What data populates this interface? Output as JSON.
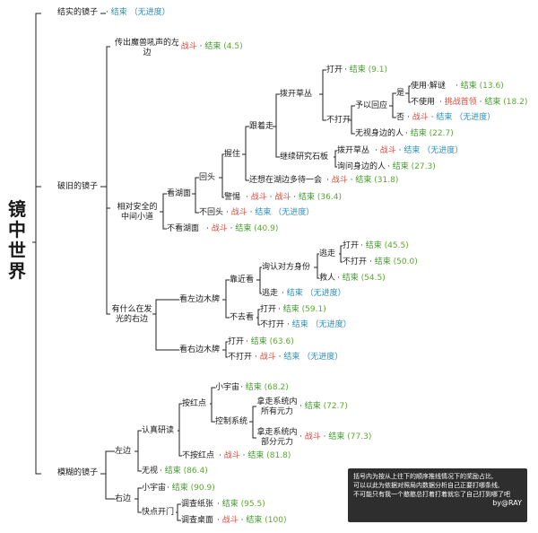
{
  "title": "镜中世界",
  "labels": {
    "fight": "战斗",
    "end": "结束",
    "no_progress": "（无进度）",
    "sep": "·"
  },
  "nodes": {
    "solid_mirror": "结实的镜子",
    "broken_mirror": "破旧的镜子",
    "blurry_mirror": "模糊的镜子",
    "beast_roar_left": "传出魔兽吼声的左边",
    "safe_path": "相对安全的中间小道",
    "light_right": "有什么在发光的右边",
    "look_lake": "看湖面",
    "no_look_lake": "不看湖面",
    "turn_back": "回头",
    "no_turn_back": "不回头",
    "hold": "握住",
    "alert": "警惕",
    "follow": "跟着走",
    "think_lake": "还想在湖边多待一会",
    "pull_grass": "拨开草丛",
    "continue_stone": "继续研究石板",
    "open": "打开",
    "not_open": "不打开",
    "respond_voice": "予以回应",
    "ignore_people": "无视身边的人",
    "yes": "是",
    "no": "否",
    "use_solve": "使用·解谜",
    "not_use": "不使用",
    "challenge_boss": "挑战首领",
    "pull_grass2": "拨开草丛",
    "ask_people": "询问身边的人",
    "look_left_sign": "看左边木牌",
    "look_right_sign": "看右边木牌",
    "approach": "靠近看",
    "not_look": "不去看",
    "confirm_identity": "询认对方身份",
    "flee": "逃走",
    "flee2": "逃走",
    "save_people": "救人",
    "open_a": "打开",
    "not_open_a": "不打开",
    "open_b": "打开",
    "not_open_b": "不打开",
    "open_c": "打开",
    "not_open_c": "不打开",
    "serious_study": "认真研读",
    "ignore": "无视",
    "left": "左边",
    "right": "右边",
    "press_red": "按红点",
    "no_press_red": "不按红点",
    "small_universe": "小宇宙",
    "control_system": "控制系统",
    "take_all_power": "拿走系统内所有元力",
    "take_part_power": "拿走系统内部分元力",
    "small_universe2": "小宇宙",
    "quick_open": "快点开门",
    "check_paper": "调查纸张",
    "check_desk": "调查桌面"
  },
  "scores": {
    "s45a": "(4.5)",
    "s9_1": "(9.1)",
    "s13_6": "(13.6)",
    "s18_2": "(18.2)",
    "s22_7": "(22.7)",
    "s27_3": "(27.3)",
    "s31_8": "(31.8)",
    "s36_4": "(36.4)",
    "s40_9": "(40.9)",
    "s45_5": "(45.5)",
    "s50_0": "(50.0)",
    "s54_5": "(54.5)",
    "s59_1": "(59.1)",
    "s63_6": "(63.6)",
    "s68_2": "(68.2)",
    "s72_7": "(72.7)",
    "s77_3": "(77.3)",
    "s81_8": "(81.8)",
    "s86_4": "(86.4)",
    "s90_9": "(90.9)",
    "s95_5": "(95.5)",
    "s100": "(100)"
  },
  "note": {
    "line1": "括号内为按从上往下的顺序推线情况下的奖励占比,",
    "line2": "可以以此为依据对照局内数据分析自己正要打哪条线,",
    "line3": "不可能只有我一个憨憨总打着打着就忘了自己打到哪了吧",
    "signature": "by@RAY"
  }
}
